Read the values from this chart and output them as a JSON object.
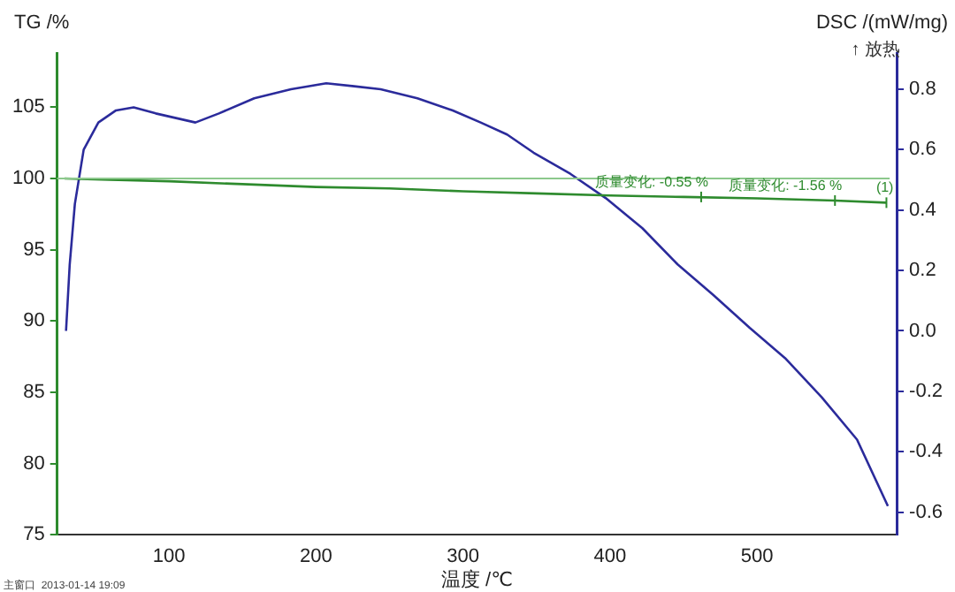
{
  "chart_data": {
    "type": "line",
    "xlabel": "温度 /℃",
    "ylabel": "TG /%",
    "y2label": "DSC /(mW/mg)",
    "xlim": [
      24,
      595
    ],
    "xticks": [
      100,
      200,
      300,
      400,
      500
    ],
    "ylim": [
      75,
      108.8
    ],
    "yticks": [
      75,
      80,
      85,
      90,
      95,
      100,
      105
    ],
    "y2lim": [
      -0.675,
      0.92
    ],
    "y2ticks": [
      {
        "value": -0.6,
        "label": "-0.6"
      },
      {
        "value": -0.4,
        "label": "-0.4"
      },
      {
        "value": -0.2,
        "label": "-0.2"
      },
      {
        "value": 0,
        "label": "0.0"
      },
      {
        "value": 0.2,
        "label": "0.2"
      },
      {
        "value": 0.4,
        "label": "0.4"
      },
      {
        "value": 0.6,
        "label": "0.6"
      },
      {
        "value": 0.8,
        "label": "0.8"
      }
    ],
    "grid": false,
    "legend": false,
    "marker": "none",
    "line_style": "solid",
    "series": [
      {
        "color": "#2e8b2e",
        "x": [
          29,
          60,
          100,
          150,
          200,
          250,
          300,
          350,
          400,
          450,
          500,
          553,
          588
        ],
        "values": [
          100.0,
          99.9,
          99.8,
          99.6,
          99.4,
          99.3,
          99.1,
          98.95,
          98.8,
          98.7,
          98.6,
          98.45,
          98.3
        ]
      },
      {
        "color": "#2b2b9b",
        "axis": "y2",
        "x": [
          30,
          32.5,
          36,
          42,
          52,
          64,
          76,
          91,
          118,
          134,
          158,
          183,
          207,
          226,
          244,
          269,
          293,
          312,
          330,
          348,
          373,
          397,
          422,
          446,
          470,
          495,
          519,
          544,
          568,
          589
        ],
        "values": [
          0.0,
          0.22,
          0.42,
          0.6,
          0.69,
          0.73,
          0.74,
          0.72,
          0.69,
          0.72,
          0.77,
          0.8,
          0.82,
          0.81,
          0.8,
          0.77,
          0.73,
          0.69,
          0.65,
          0.59,
          0.52,
          0.44,
          0.34,
          0.22,
          0.12,
          0.01,
          -0.09,
          -0.22,
          -0.36,
          -0.58
        ]
      }
    ],
    "ref_lines": [
      {
        "axis": "y",
        "value": 100,
        "color": "#8cc88c"
      }
    ],
    "annotations": [
      "↑ 放热",
      "主窗口  2013-01-14 19:09",
      {
        "text": "质量变化: -0.55 %",
        "x": 462,
        "y": 98.7
      },
      {
        "text": "质量变化: -1.56 %",
        "x": 553,
        "y": 98.45
      },
      {
        "text": "(1)",
        "x": 588,
        "y": 98.3
      }
    ]
  }
}
